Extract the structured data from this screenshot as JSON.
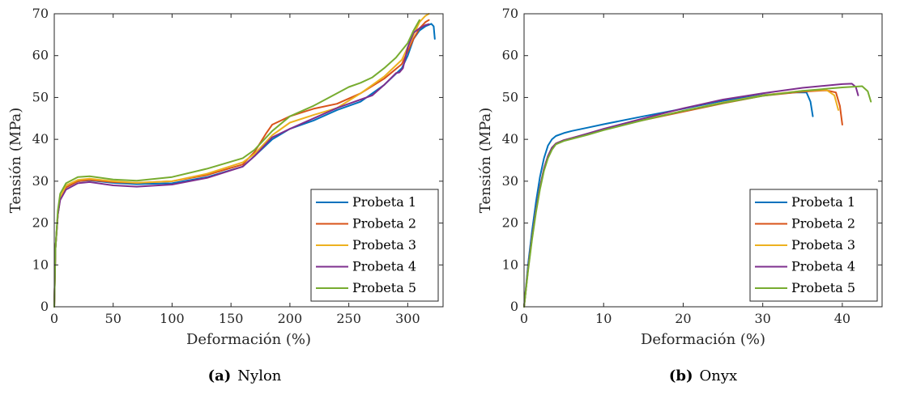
{
  "colors": [
    "#0072BD",
    "#D95319",
    "#EDB120",
    "#7E2F8E",
    "#77AC30"
  ],
  "chart_data": [
    {
      "type": "line",
      "caption_tag": "(a)",
      "caption_text": "Nylon",
      "xlabel": "Deformación (%)",
      "ylabel": "Tensión (MPa)",
      "xlim": [
        0,
        330
      ],
      "ylim": [
        0,
        70
      ],
      "xticks": [
        0,
        50,
        100,
        150,
        200,
        250,
        300
      ],
      "yticks": [
        0,
        10,
        20,
        30,
        40,
        50,
        60,
        70
      ],
      "legend_position": "bottom-right",
      "series": [
        {
          "name": "Probeta 1",
          "x": [
            0,
            1,
            3,
            5,
            10,
            20,
            30,
            50,
            70,
            100,
            130,
            160,
            170,
            185,
            200,
            220,
            240,
            260,
            280,
            295,
            300,
            305,
            310,
            315,
            320,
            322,
            323
          ],
          "y": [
            0,
            14,
            22,
            26,
            28.5,
            30,
            30.2,
            29.6,
            29.3,
            29.5,
            31,
            33.5,
            36,
            40,
            42.5,
            44.5,
            47,
            49,
            53,
            57,
            60,
            64,
            66,
            67,
            67.6,
            67,
            64
          ]
        },
        {
          "name": "Probeta 2",
          "x": [
            0,
            1,
            3,
            5,
            10,
            20,
            30,
            50,
            70,
            100,
            130,
            160,
            170,
            180,
            185,
            200,
            220,
            240,
            260,
            280,
            295,
            300,
            305,
            310,
            315,
            318
          ],
          "y": [
            0,
            14,
            22,
            26,
            28.5,
            30,
            30.3,
            29.8,
            29.6,
            30,
            31.5,
            34,
            37,
            41.5,
            43.5,
            45.5,
            47.3,
            48.5,
            51,
            54.5,
            58,
            61,
            64,
            66.5,
            68,
            68.5
          ]
        },
        {
          "name": "Probeta 3",
          "x": [
            0,
            1,
            3,
            5,
            10,
            20,
            30,
            50,
            70,
            100,
            130,
            160,
            170,
            185,
            200,
            220,
            240,
            260,
            280,
            295,
            300,
            305,
            310,
            315,
            318
          ],
          "y": [
            0,
            14,
            22,
            26,
            29,
            30.3,
            30.6,
            30,
            29.6,
            30,
            31.8,
            34.5,
            36.5,
            41,
            44,
            45.8,
            47.5,
            51,
            55,
            59,
            62,
            65,
            68,
            69.5,
            70
          ]
        },
        {
          "name": "Probeta 4",
          "x": [
            0,
            1,
            3,
            5,
            10,
            20,
            30,
            50,
            70,
            100,
            130,
            160,
            170,
            185,
            200,
            220,
            240,
            260,
            270,
            280,
            290,
            293,
            296,
            300,
            305,
            310,
            315,
            318
          ],
          "y": [
            0,
            14,
            22,
            25.5,
            28,
            29.5,
            29.8,
            29,
            28.7,
            29.2,
            30.8,
            33.5,
            36,
            40.5,
            42.5,
            45,
            47.5,
            49.5,
            50.5,
            53,
            55.8,
            56,
            57,
            62,
            65.5,
            66.5,
            67.3,
            67.5
          ]
        },
        {
          "name": "Probeta 5",
          "x": [
            0,
            1,
            3,
            5,
            10,
            20,
            30,
            50,
            70,
            100,
            130,
            160,
            170,
            185,
            200,
            220,
            240,
            250,
            260,
            270,
            280,
            290,
            300,
            305,
            310
          ],
          "y": [
            0,
            14,
            23,
            27,
            29.5,
            31,
            31.2,
            30.4,
            30.1,
            31,
            33,
            35.5,
            37.5,
            42,
            45.5,
            48,
            51,
            52.5,
            53.5,
            54.8,
            57,
            59.5,
            63,
            66,
            68.5
          ]
        }
      ]
    },
    {
      "type": "line",
      "caption_tag": "(b)",
      "caption_text": "Onyx",
      "xlabel": "Deformación (%)",
      "ylabel": "Tensión (MPa)",
      "xlim": [
        0,
        45
      ],
      "ylim": [
        0,
        70
      ],
      "xticks": [
        0,
        10,
        20,
        30,
        40
      ],
      "yticks": [
        0,
        10,
        20,
        30,
        40,
        50,
        60,
        70
      ],
      "legend_position": "bottom-right",
      "series": [
        {
          "name": "Probeta 1",
          "x": [
            0,
            0.5,
            1,
            1.5,
            2,
            2.5,
            3,
            3.5,
            4,
            5,
            6,
            8,
            10,
            15,
            20,
            25,
            30,
            34,
            35.5,
            36,
            36.3
          ],
          "y": [
            0,
            10,
            18,
            25,
            31,
            35.5,
            38.5,
            40,
            40.8,
            41.5,
            42,
            42.8,
            43.6,
            45.5,
            47.3,
            49.2,
            50.6,
            51.2,
            51.2,
            49,
            45.5
          ]
        },
        {
          "name": "Probeta 2",
          "x": [
            0,
            0.5,
            1,
            1.5,
            2,
            2.5,
            3,
            3.5,
            4,
            5,
            6,
            8,
            10,
            15,
            20,
            25,
            30,
            35,
            38,
            39.2,
            39.7,
            40
          ],
          "y": [
            0,
            9,
            16.5,
            23,
            28.5,
            33,
            36,
            38,
            39,
            39.8,
            40.3,
            41.3,
            42.4,
            44.6,
            46.6,
            48.6,
            50.4,
            51.4,
            51.7,
            51.2,
            48,
            43.5
          ]
        },
        {
          "name": "Probeta 3",
          "x": [
            0,
            0.5,
            1,
            1.5,
            2,
            2.5,
            3,
            3.5,
            4,
            5,
            6,
            8,
            10,
            15,
            20,
            25,
            30,
            35,
            38,
            39,
            39.5
          ],
          "y": [
            0,
            9,
            16.5,
            23,
            28.5,
            33,
            36,
            38,
            39,
            39.8,
            40.3,
            41.3,
            42.5,
            44.7,
            46.8,
            48.8,
            50.5,
            51.6,
            51.8,
            50.5,
            47
          ]
        },
        {
          "name": "Probeta 4",
          "x": [
            0,
            0.5,
            1,
            1.5,
            2,
            2.5,
            3,
            3.5,
            4,
            5,
            6,
            8,
            10,
            15,
            20,
            25,
            30,
            35,
            40,
            41.2,
            41.7,
            42
          ],
          "y": [
            0,
            9,
            16.5,
            23,
            28.5,
            33,
            36,
            38,
            39,
            39.8,
            40.3,
            41.4,
            42.5,
            45,
            47.4,
            49.5,
            51,
            52.3,
            53.2,
            53.3,
            52.5,
            50.5
          ]
        },
        {
          "name": "Probeta 5",
          "x": [
            0,
            0.5,
            1,
            1.5,
            2,
            2.5,
            3,
            3.5,
            4,
            5,
            6,
            8,
            10,
            15,
            20,
            25,
            30,
            35,
            40,
            42.5,
            43.2,
            43.6
          ],
          "y": [
            0,
            8.5,
            16,
            22.5,
            28,
            32.5,
            35.5,
            37.5,
            38.8,
            39.6,
            40.1,
            41.1,
            42.2,
            44.6,
            46.8,
            48.7,
            50.4,
            51.6,
            52.4,
            52.7,
            51.5,
            49
          ]
        }
      ]
    }
  ]
}
